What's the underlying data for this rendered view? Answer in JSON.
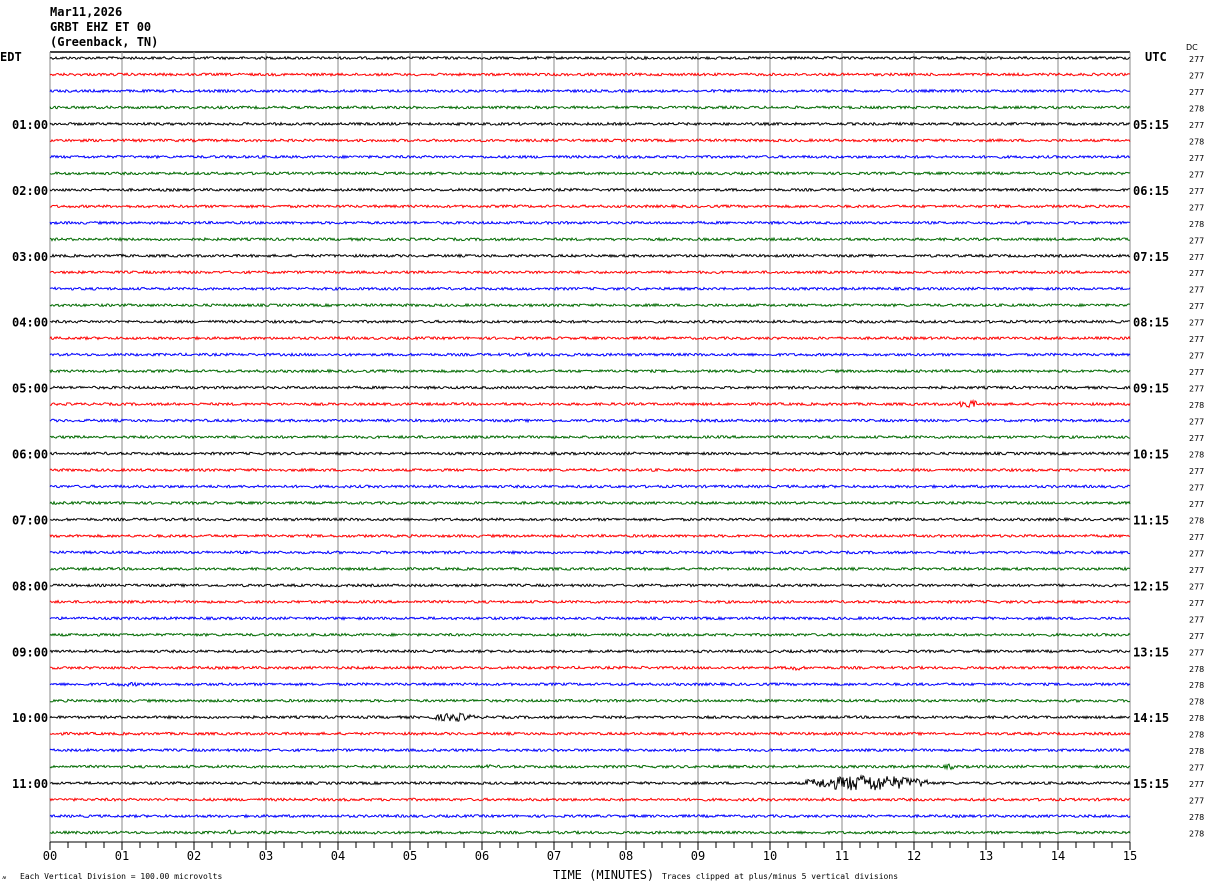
{
  "header": {
    "date": "Mar11,2026",
    "station": "GRBT EHZ ET 00",
    "location": "(Greenback, TN)"
  },
  "left_timezone": "EDT",
  "right_timezone": "UTC",
  "dc_label": "DC",
  "footer": {
    "scale_note": "Each Vertical Division =  100.00 microvolts",
    "xlabel": "TIME (MINUTES)",
    "clip_note": "Traces clipped at plus/minus 5 vertical divisions"
  },
  "chart_data": {
    "type": "line",
    "title": "",
    "xlabel": "TIME (MINUTES)",
    "xlim": [
      0,
      15
    ],
    "x_tick_labels": [
      "00",
      "01",
      "02",
      "03",
      "04",
      "05",
      "06",
      "07",
      "08",
      "09",
      "10",
      "11",
      "12",
      "13",
      "14",
      "15"
    ],
    "grid": true,
    "trace_colors": [
      "#000000",
      "#ff0000",
      "#0000ff",
      "#006a00"
    ],
    "traces_per_hour": 4,
    "left_hour_labels": [
      "01:00",
      "02:00",
      "03:00",
      "04:00",
      "05:00",
      "06:00",
      "07:00",
      "08:00",
      "09:00",
      "10:00",
      "11:00"
    ],
    "right_hour_labels": [
      "05:15",
      "06:15",
      "07:15",
      "08:15",
      "09:15",
      "10:15",
      "11:15",
      "12:15",
      "13:15",
      "14:15",
      "15:15"
    ],
    "dc_offsets": [
      277,
      277,
      277,
      278,
      277,
      278,
      277,
      277,
      277,
      277,
      278,
      277,
      277,
      277,
      277,
      277,
      277,
      277,
      277,
      277,
      277,
      278,
      277,
      277,
      278,
      277,
      277,
      277,
      278,
      277,
      277,
      277,
      277,
      277,
      277,
      277,
      277,
      278,
      278,
      278,
      278,
      278,
      278,
      277,
      277,
      277,
      278,
      278
    ],
    "events": [
      {
        "trace": 18,
        "start_min": 4.5,
        "end_min": 9.5,
        "amplitude": 1.6
      },
      {
        "trace": 21,
        "start_min": 10.6,
        "end_min": 11.0,
        "amplitude": 1.5
      },
      {
        "trace": 21,
        "start_min": 12.6,
        "end_min": 12.9,
        "amplitude": 5
      },
      {
        "trace": 37,
        "start_min": 8.1,
        "end_min": 8.3,
        "amplitude": 2
      },
      {
        "trace": 37,
        "start_min": 10.2,
        "end_min": 10.5,
        "amplitude": 3
      },
      {
        "trace": 38,
        "start_min": 0.5,
        "end_min": 1.7,
        "amplitude": 2
      },
      {
        "trace": 40,
        "start_min": 5.3,
        "end_min": 5.9,
        "amplitude": 5
      },
      {
        "trace": 43,
        "start_min": 12.4,
        "end_min": 12.6,
        "amplitude": 3
      },
      {
        "trace": 43,
        "start_min": 6.0,
        "end_min": 6.2,
        "amplitude": 2
      },
      {
        "trace": 44,
        "start_min": 10.5,
        "end_min": 12.2,
        "amplitude": 9
      },
      {
        "trace": 47,
        "start_min": 2.4,
        "end_min": 2.6,
        "amplitude": 2.5
      },
      {
        "trace": 47,
        "start_min": 4.4,
        "end_min": 4.6,
        "amplitude": 2.5
      }
    ]
  }
}
